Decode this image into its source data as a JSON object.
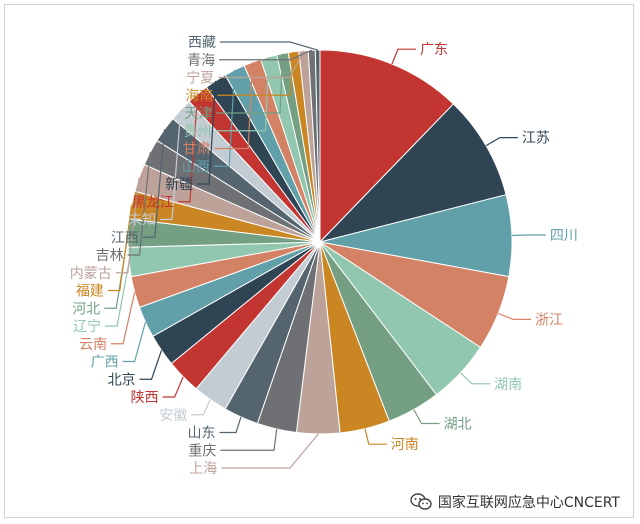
{
  "chart_data": {
    "type": "pie",
    "title": "",
    "categories": [
      "广东",
      "江苏",
      "四川",
      "浙江",
      "湖南",
      "湖北",
      "河南",
      "上海",
      "重庆",
      "山东",
      "安徽",
      "陕西",
      "北京",
      "广西",
      "云南",
      "辽宁",
      "河北",
      "福建",
      "内蒙古",
      "吉林",
      "江西",
      "未知",
      "黑龙江",
      "新疆",
      "山西",
      "甘肃",
      "贵州",
      "天津",
      "海南",
      "宁夏",
      "青海",
      "西藏"
    ],
    "values": [
      12.5,
      9.0,
      7.0,
      6.5,
      5.5,
      4.6,
      4.3,
      3.7,
      3.4,
      3.0,
      3.0,
      3.0,
      2.8,
      2.7,
      2.7,
      2.5,
      2.4,
      2.4,
      2.4,
      2.3,
      2.3,
      2.0,
      1.9,
      1.9,
      1.8,
      1.5,
      1.4,
      1.0,
      0.9,
      0.8,
      0.6,
      0.4
    ],
    "colors": [
      "#c23531",
      "#2f4554",
      "#61a0a8",
      "#d48265",
      "#91c7ae",
      "#749f83",
      "#ca8622",
      "#bda29a",
      "#6e7074",
      "#546570",
      "#c4ccd3"
    ],
    "legend": "none"
  },
  "watermark": {
    "icon": "wechat-icon",
    "text": "国家互联网应急中心CNCERT"
  }
}
